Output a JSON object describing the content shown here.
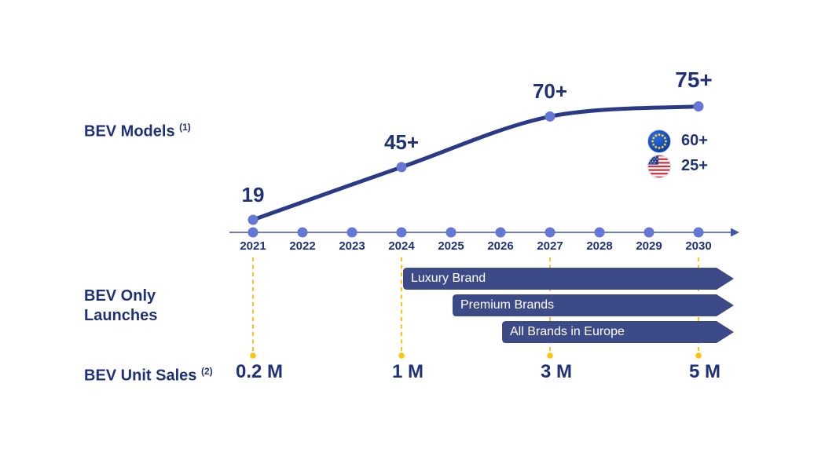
{
  "colors": {
    "navy_text": "#1f3278",
    "curve": "#2b3a86",
    "marker": "#6577d6",
    "axis": "#3f54ab",
    "bar_fill": "#3d4a88",
    "bar_text": "#ffffff",
    "dashed_guide": "#ffc20e"
  },
  "sections": {
    "models": {
      "label": "BEV Models",
      "sup": "(1)"
    },
    "launches": {
      "line1": "BEV Only",
      "line2": "Launches"
    },
    "sales": {
      "label": "BEV Unit Sales",
      "sup": "(2)"
    }
  },
  "legend": {
    "eu_value": "60+",
    "us_value": "25+"
  },
  "chart_data": {
    "type": "line",
    "title": "BEV Models",
    "x": [
      2021,
      2022,
      2023,
      2024,
      2025,
      2026,
      2027,
      2028,
      2029,
      2030
    ],
    "xlim": [
      2021,
      2030
    ],
    "grid": false,
    "legend_position": "right",
    "series": [
      {
        "name": "BEV Models",
        "points": [
          {
            "year": 2021,
            "value": 19,
            "label": "19"
          },
          {
            "year": 2024,
            "value": 45,
            "label": "45+"
          },
          {
            "year": 2027,
            "value": 70,
            "label": "70+"
          },
          {
            "year": 2030,
            "value": 75,
            "label": "75+"
          }
        ]
      }
    ],
    "legend": [
      {
        "region": "Europe",
        "icon": "eu-flag",
        "value": "60+"
      },
      {
        "region": "USA",
        "icon": "us-flag",
        "value": "25+"
      }
    ],
    "launch_bars": [
      {
        "label": "Luxury Brand",
        "start_year": 2024,
        "end": "arrow-beyond-2030"
      },
      {
        "label": "Premium Brands",
        "start_year": 2025,
        "end": "arrow-beyond-2030"
      },
      {
        "label": "All Brands in Europe",
        "start_year": 2026,
        "end": "arrow-beyond-2030"
      }
    ],
    "unit_sales": [
      {
        "year": 2021,
        "label": "0.2 M"
      },
      {
        "year": 2024,
        "label": "1 M"
      },
      {
        "year": 2027,
        "label": "3 M"
      },
      {
        "year": 2030,
        "label": "5 M"
      }
    ]
  }
}
